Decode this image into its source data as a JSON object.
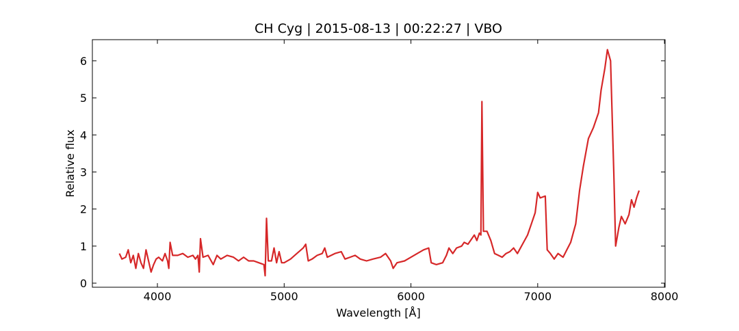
{
  "chart_data": {
    "type": "line",
    "title": "CH Cyg | 2015-08-13 | 00:22:27 | VBO",
    "xlabel": "Wavelength [Å]",
    "ylabel": "Relative flux",
    "xlim": [
      3487,
      8005
    ],
    "ylim": [
      -0.11,
      6.57
    ],
    "xticks": [
      4000,
      5000,
      6000,
      7000,
      8000
    ],
    "yticks": [
      0,
      1,
      2,
      3,
      4,
      5,
      6
    ],
    "x": [
      3700,
      3720,
      3750,
      3770,
      3790,
      3810,
      3830,
      3850,
      3870,
      3890,
      3910,
      3930,
      3950,
      3970,
      3990,
      4010,
      4040,
      4060,
      4080,
      4090,
      4100,
      4120,
      4160,
      4200,
      4240,
      4280,
      4300,
      4320,
      4330,
      4340,
      4360,
      4400,
      4440,
      4470,
      4500,
      4550,
      4600,
      4640,
      4680,
      4720,
      4760,
      4800,
      4840,
      4850,
      4861,
      4875,
      4900,
      4920,
      4940,
      4960,
      4980,
      5000,
      5050,
      5100,
      5150,
      5170,
      5190,
      5220,
      5260,
      5300,
      5320,
      5340,
      5400,
      5450,
      5480,
      5520,
      5560,
      5600,
      5650,
      5700,
      5760,
      5800,
      5840,
      5860,
      5890,
      5950,
      6000,
      6050,
      6100,
      6140,
      6160,
      6200,
      6250,
      6280,
      6300,
      6330,
      6360,
      6400,
      6420,
      6450,
      6480,
      6500,
      6520,
      6540,
      6552,
      6560,
      6572,
      6600,
      6630,
      6660,
      6690,
      6720,
      6750,
      6780,
      6810,
      6840,
      6880,
      6920,
      6950,
      6980,
      7000,
      7020,
      7060,
      7075,
      7100,
      7130,
      7160,
      7200,
      7230,
      7260,
      7300,
      7330,
      7360,
      7400,
      7440,
      7480,
      7500,
      7530,
      7550,
      7575,
      7600,
      7615,
      7640,
      7660,
      7690,
      7720,
      7740,
      7760,
      7780,
      7800
    ],
    "series": [
      {
        "name": "CH Cyg",
        "color": "#d62728",
        "values": [
          0.8,
          0.65,
          0.7,
          0.9,
          0.55,
          0.75,
          0.4,
          0.8,
          0.55,
          0.4,
          0.9,
          0.6,
          0.3,
          0.5,
          0.65,
          0.7,
          0.6,
          0.8,
          0.6,
          0.4,
          1.1,
          0.75,
          0.75,
          0.8,
          0.7,
          0.75,
          0.65,
          0.75,
          0.3,
          1.2,
          0.7,
          0.75,
          0.5,
          0.75,
          0.65,
          0.75,
          0.7,
          0.6,
          0.7,
          0.6,
          0.6,
          0.55,
          0.5,
          0.2,
          1.75,
          0.6,
          0.6,
          0.95,
          0.55,
          0.85,
          0.55,
          0.55,
          0.65,
          0.8,
          0.95,
          1.05,
          0.6,
          0.65,
          0.75,
          0.8,
          0.95,
          0.7,
          0.8,
          0.85,
          0.65,
          0.7,
          0.75,
          0.65,
          0.6,
          0.65,
          0.7,
          0.8,
          0.6,
          0.4,
          0.55,
          0.6,
          0.7,
          0.8,
          0.9,
          0.95,
          0.55,
          0.5,
          0.55,
          0.75,
          0.95,
          0.8,
          0.95,
          1.0,
          1.1,
          1.05,
          1.2,
          1.3,
          1.15,
          1.35,
          1.3,
          4.9,
          1.4,
          1.4,
          1.15,
          0.8,
          0.75,
          0.7,
          0.8,
          0.85,
          0.95,
          0.8,
          1.05,
          1.3,
          1.6,
          1.9,
          2.45,
          2.3,
          2.35,
          0.9,
          0.8,
          0.65,
          0.8,
          0.7,
          0.9,
          1.1,
          1.6,
          2.5,
          3.15,
          3.9,
          4.2,
          4.6,
          5.2,
          5.8,
          6.3,
          6.0,
          3.0,
          1.0,
          1.5,
          1.8,
          1.6,
          1.85,
          2.25,
          2.05,
          2.3,
          2.5
        ]
      }
    ]
  }
}
